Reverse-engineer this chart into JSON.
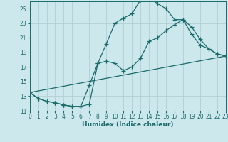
{
  "xlabel": "Humidex (Indice chaleur)",
  "background_color": "#cde8ec",
  "grid_color": "#b0d0d4",
  "line_color": "#1a6b6b",
  "xlim": [
    0,
    23
  ],
  "ylim": [
    11,
    26
  ],
  "xticks": [
    0,
    1,
    2,
    3,
    4,
    5,
    6,
    7,
    8,
    9,
    10,
    11,
    12,
    13,
    14,
    15,
    16,
    17,
    18,
    19,
    20,
    21,
    22,
    23
  ],
  "yticks": [
    11,
    13,
    15,
    17,
    19,
    21,
    23,
    25
  ],
  "line1_x": [
    0,
    1,
    2,
    3,
    4,
    5,
    6,
    7,
    8,
    9,
    10,
    11,
    12,
    13,
    14,
    15,
    16,
    17,
    18,
    19,
    20,
    21,
    22,
    23
  ],
  "line1_y": [
    13.5,
    12.7,
    12.3,
    12.1,
    11.8,
    11.6,
    11.6,
    11.9,
    17.5,
    20.2,
    23.0,
    23.7,
    24.3,
    26.2,
    26.5,
    25.7,
    25.0,
    23.5,
    23.5,
    21.5,
    20.0,
    19.5,
    18.8,
    18.5
  ],
  "line2_x": [
    0,
    1,
    2,
    3,
    4,
    5,
    6,
    7,
    8,
    9,
    10,
    11,
    12,
    13,
    14,
    15,
    16,
    17,
    18,
    19,
    20,
    21,
    22,
    23
  ],
  "line2_y": [
    13.5,
    12.7,
    12.3,
    12.1,
    11.8,
    11.6,
    11.6,
    14.5,
    17.5,
    17.8,
    17.5,
    16.5,
    17.0,
    18.2,
    20.5,
    21.0,
    22.0,
    22.8,
    23.5,
    22.5,
    20.8,
    19.5,
    18.8,
    18.5
  ],
  "line3_x": [
    0,
    23
  ],
  "line3_y": [
    13.5,
    18.5
  ],
  "line4_x": [
    0,
    23
  ],
  "line4_y": [
    13.5,
    18.5
  ]
}
